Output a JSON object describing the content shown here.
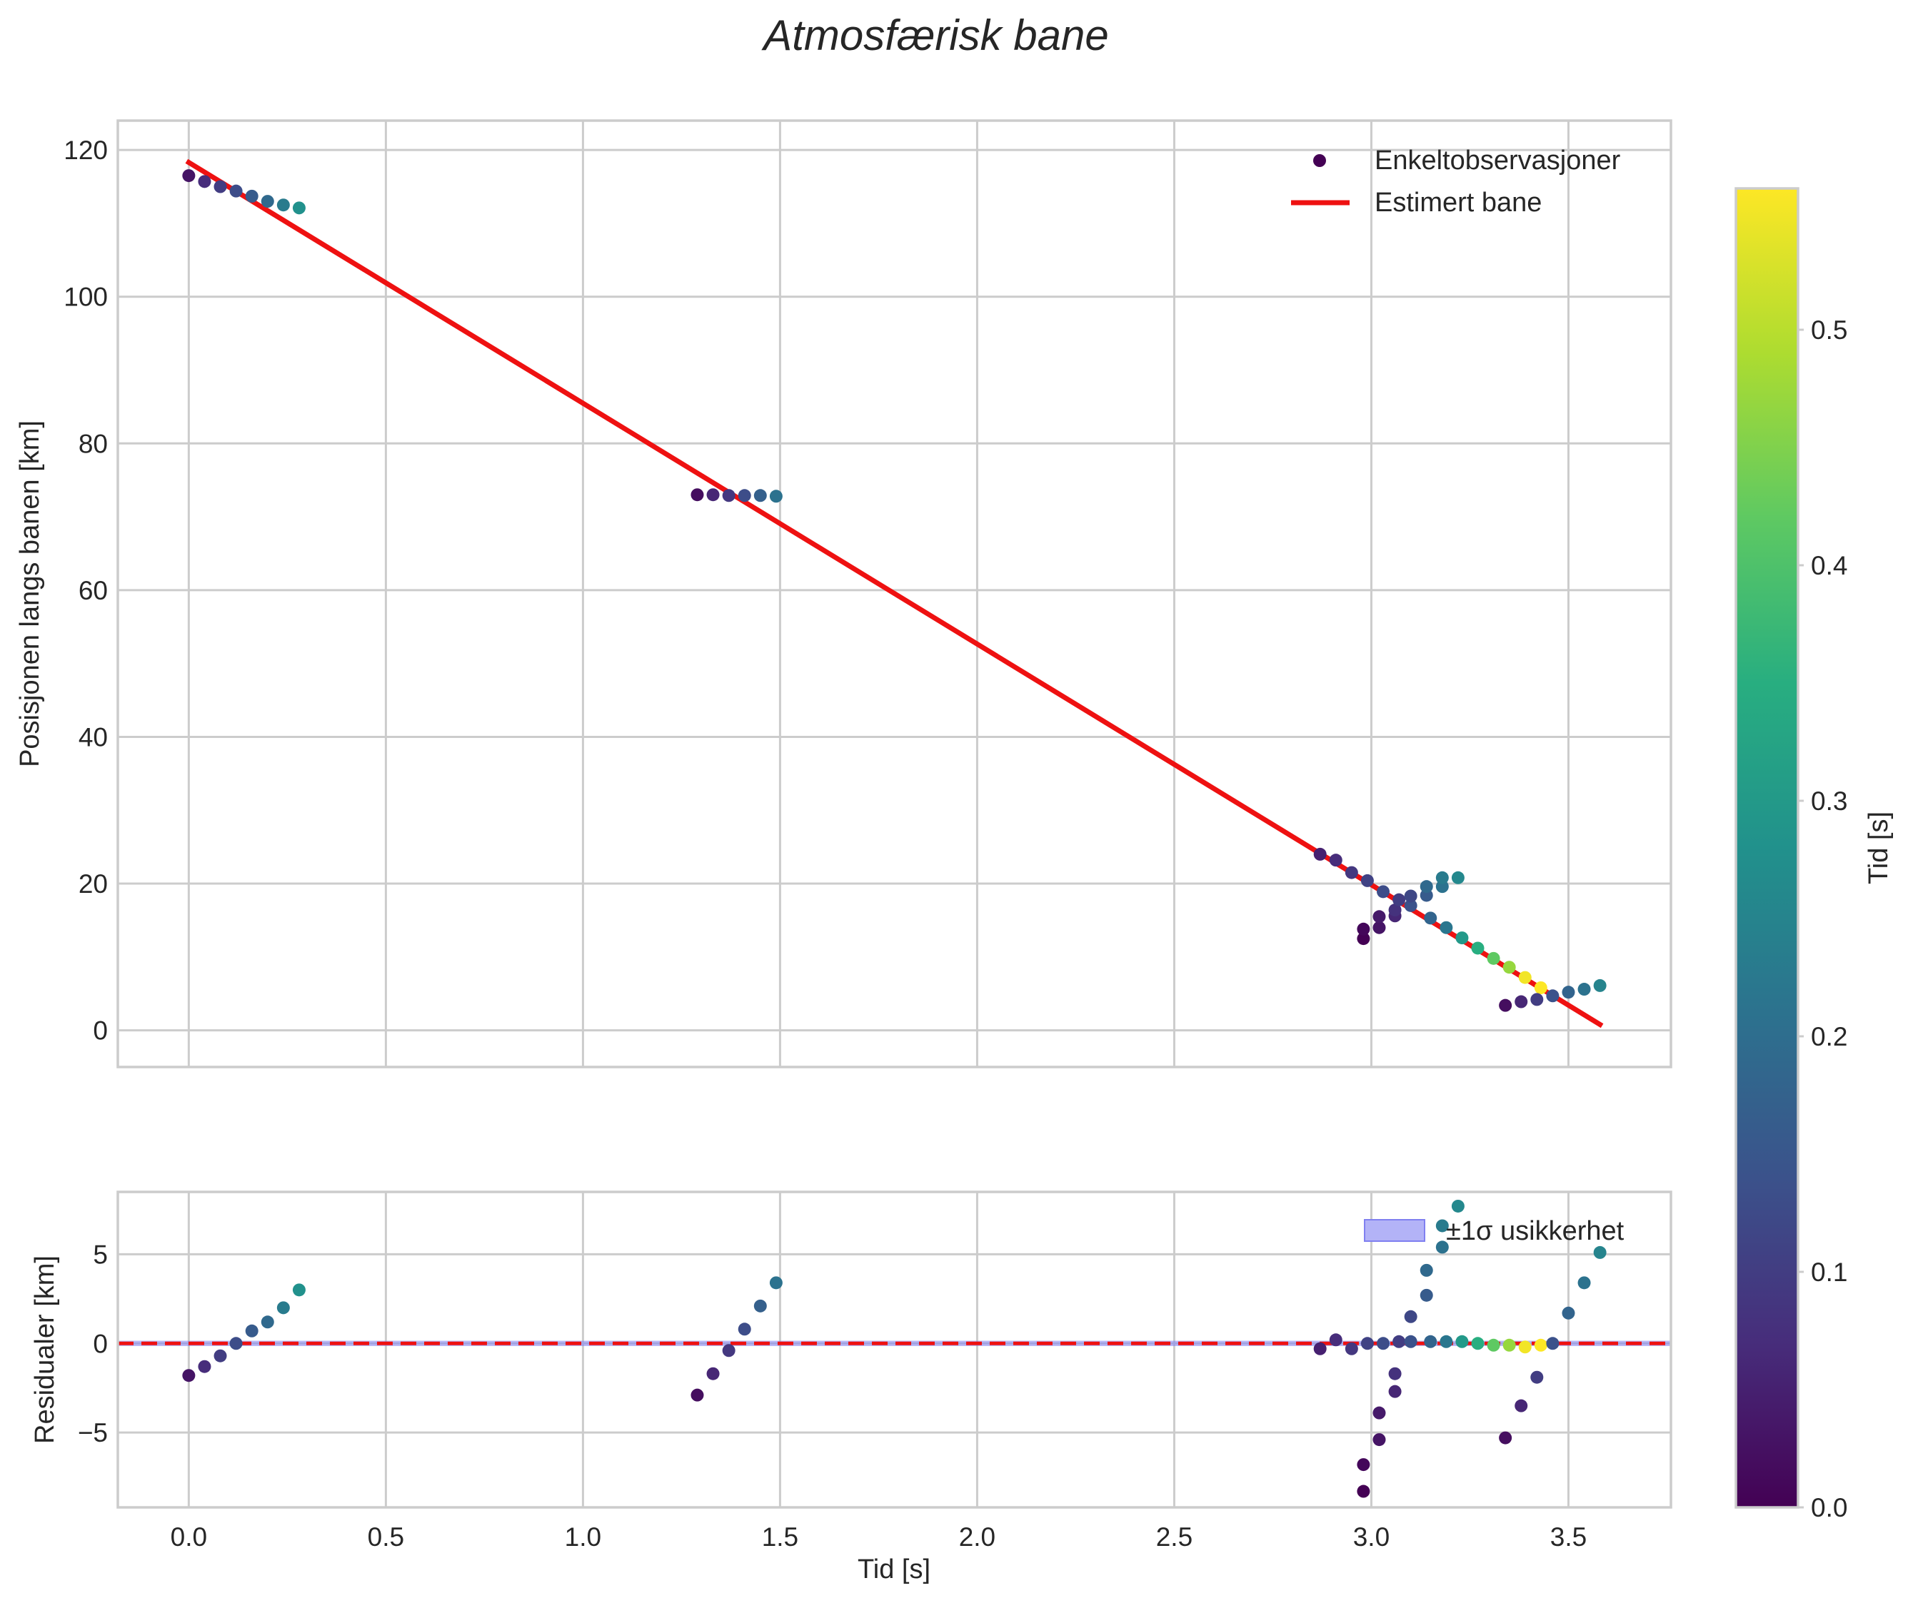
{
  "chart_data": {
    "title": "Atmosfærisk bane",
    "main": {
      "type": "scatter",
      "ylabel": "Posisjonen langs banen [km]",
      "xlim": [
        -0.18,
        3.76
      ],
      "ylim": [
        -5,
        124
      ],
      "yticks": [
        0,
        20,
        40,
        60,
        80,
        100,
        120
      ],
      "grid": true,
      "legend": {
        "position": "top-right",
        "scatter_label": "Enkeltobservasjoner",
        "line_label": "Estimert bane"
      },
      "fit_line": {
        "label": "Estimert bane",
        "color": "#ee1111",
        "x": [
          0.0,
          3.58
        ],
        "y": [
          118.3,
          0.8
        ]
      },
      "observations": [
        {
          "x": 0.0,
          "y": 116.5,
          "c": 0.03
        },
        {
          "x": 0.04,
          "y": 115.7,
          "c": 0.07
        },
        {
          "x": 0.08,
          "y": 115.0,
          "c": 0.1
        },
        {
          "x": 0.12,
          "y": 114.4,
          "c": 0.13
        },
        {
          "x": 0.16,
          "y": 113.7,
          "c": 0.16
        },
        {
          "x": 0.2,
          "y": 113.0,
          "c": 0.19
        },
        {
          "x": 0.24,
          "y": 112.5,
          "c": 0.23
        },
        {
          "x": 0.28,
          "y": 112.1,
          "c": 0.28
        },
        {
          "x": 1.29,
          "y": 73.0,
          "c": 0.02
        },
        {
          "x": 1.33,
          "y": 73.0,
          "c": 0.06
        },
        {
          "x": 1.37,
          "y": 72.9,
          "c": 0.09
        },
        {
          "x": 1.41,
          "y": 72.9,
          "c": 0.13
        },
        {
          "x": 1.45,
          "y": 72.9,
          "c": 0.17
        },
        {
          "x": 1.49,
          "y": 72.8,
          "c": 0.21
        },
        {
          "x": 2.87,
          "y": 24.0,
          "c": 0.05
        },
        {
          "x": 2.91,
          "y": 23.2,
          "c": 0.07
        },
        {
          "x": 2.95,
          "y": 21.5,
          "c": 0.09
        },
        {
          "x": 2.99,
          "y": 20.4,
          "c": 0.11
        },
        {
          "x": 2.98,
          "y": 12.5,
          "c": 0.0
        },
        {
          "x": 2.98,
          "y": 13.8,
          "c": 0.01
        },
        {
          "x": 3.02,
          "y": 14.0,
          "c": 0.03
        },
        {
          "x": 3.02,
          "y": 15.5,
          "c": 0.04
        },
        {
          "x": 3.03,
          "y": 18.9,
          "c": 0.13
        },
        {
          "x": 3.06,
          "y": 15.6,
          "c": 0.06
        },
        {
          "x": 3.06,
          "y": 16.4,
          "c": 0.08
        },
        {
          "x": 3.07,
          "y": 17.8,
          "c": 0.1
        },
        {
          "x": 3.1,
          "y": 17.0,
          "c": 0.14
        },
        {
          "x": 3.1,
          "y": 18.3,
          "c": 0.12
        },
        {
          "x": 3.14,
          "y": 18.4,
          "c": 0.16
        },
        {
          "x": 3.14,
          "y": 19.6,
          "c": 0.19
        },
        {
          "x": 3.15,
          "y": 15.3,
          "c": 0.18
        },
        {
          "x": 3.18,
          "y": 19.6,
          "c": 0.21
        },
        {
          "x": 3.18,
          "y": 20.8,
          "c": 0.23
        },
        {
          "x": 3.19,
          "y": 14.0,
          "c": 0.22
        },
        {
          "x": 3.22,
          "y": 20.8,
          "c": 0.26
        },
        {
          "x": 3.23,
          "y": 12.6,
          "c": 0.3
        },
        {
          "x": 3.27,
          "y": 11.2,
          "c": 0.35
        },
        {
          "x": 3.31,
          "y": 9.8,
          "c": 0.42
        },
        {
          "x": 3.35,
          "y": 8.6,
          "c": 0.47
        },
        {
          "x": 3.39,
          "y": 7.2,
          "c": 0.55
        },
        {
          "x": 3.43,
          "y": 5.8,
          "c": 0.56
        },
        {
          "x": 3.34,
          "y": 3.4,
          "c": 0.02
        },
        {
          "x": 3.38,
          "y": 3.9,
          "c": 0.06
        },
        {
          "x": 3.42,
          "y": 4.2,
          "c": 0.1
        },
        {
          "x": 3.46,
          "y": 4.7,
          "c": 0.14
        },
        {
          "x": 3.5,
          "y": 5.2,
          "c": 0.18
        },
        {
          "x": 3.54,
          "y": 5.6,
          "c": 0.21
        },
        {
          "x": 3.58,
          "y": 6.1,
          "c": 0.25
        }
      ]
    },
    "residuals": {
      "type": "scatter",
      "xlabel": "Tid [s]",
      "ylabel": "Residualer [km]",
      "xlim": [
        -0.18,
        3.76
      ],
      "ylim": [
        -9.2,
        8.5
      ],
      "yticks": [
        -5,
        0,
        5
      ],
      "ytick_labels": [
        "−5",
        "0",
        "5"
      ],
      "xticks": [
        0.0,
        0.5,
        1.0,
        1.5,
        2.0,
        2.5,
        3.0,
        3.5
      ],
      "xtick_labels": [
        "0.0",
        "0.5",
        "1.0",
        "1.5",
        "2.0",
        "2.5",
        "3.0",
        "3.5"
      ],
      "zero_line": {
        "color": "#ee1111",
        "style": "dashed",
        "y": 0
      },
      "band": {
        "label": "±1σ usikkerhet",
        "color": "#8080f0",
        "lower": -0.15,
        "upper": 0.15
      },
      "legend": {
        "position": "top-right",
        "band_label": "±1σ usikkerhet"
      },
      "points": [
        {
          "x": 0.0,
          "y": -1.8,
          "c": 0.03
        },
        {
          "x": 0.04,
          "y": -1.3,
          "c": 0.07
        },
        {
          "x": 0.08,
          "y": -0.7,
          "c": 0.1
        },
        {
          "x": 0.12,
          "y": 0.0,
          "c": 0.13
        },
        {
          "x": 0.16,
          "y": 0.7,
          "c": 0.16
        },
        {
          "x": 0.2,
          "y": 1.2,
          "c": 0.19
        },
        {
          "x": 0.24,
          "y": 2.0,
          "c": 0.23
        },
        {
          "x": 0.28,
          "y": 3.0,
          "c": 0.28
        },
        {
          "x": 1.29,
          "y": -2.9,
          "c": 0.02
        },
        {
          "x": 1.33,
          "y": -1.7,
          "c": 0.06
        },
        {
          "x": 1.37,
          "y": -0.4,
          "c": 0.09
        },
        {
          "x": 1.41,
          "y": 0.8,
          "c": 0.13
        },
        {
          "x": 1.45,
          "y": 2.1,
          "c": 0.17
        },
        {
          "x": 1.49,
          "y": 3.4,
          "c": 0.21
        },
        {
          "x": 2.87,
          "y": -0.3,
          "c": 0.05
        },
        {
          "x": 2.91,
          "y": 0.2,
          "c": 0.07
        },
        {
          "x": 2.95,
          "y": -0.3,
          "c": 0.09
        },
        {
          "x": 2.99,
          "y": 0.0,
          "c": 0.11
        },
        {
          "x": 2.98,
          "y": -8.3,
          "c": 0.0
        },
        {
          "x": 2.98,
          "y": -6.8,
          "c": 0.01
        },
        {
          "x": 3.02,
          "y": -5.4,
          "c": 0.03
        },
        {
          "x": 3.02,
          "y": -3.9,
          "c": 0.04
        },
        {
          "x": 3.03,
          "y": 0.0,
          "c": 0.13
        },
        {
          "x": 3.06,
          "y": -2.7,
          "c": 0.06
        },
        {
          "x": 3.06,
          "y": -1.7,
          "c": 0.08
        },
        {
          "x": 3.07,
          "y": 0.1,
          "c": 0.1
        },
        {
          "x": 3.1,
          "y": 0.1,
          "c": 0.14
        },
        {
          "x": 3.1,
          "y": 1.5,
          "c": 0.12
        },
        {
          "x": 3.14,
          "y": 2.7,
          "c": 0.16
        },
        {
          "x": 3.14,
          "y": 4.1,
          "c": 0.19
        },
        {
          "x": 3.15,
          "y": 0.1,
          "c": 0.18
        },
        {
          "x": 3.18,
          "y": 5.4,
          "c": 0.21
        },
        {
          "x": 3.18,
          "y": 6.6,
          "c": 0.23
        },
        {
          "x": 3.19,
          "y": 0.1,
          "c": 0.22
        },
        {
          "x": 3.22,
          "y": 7.7,
          "c": 0.26
        },
        {
          "x": 3.23,
          "y": 0.1,
          "c": 0.3
        },
        {
          "x": 3.27,
          "y": 0.0,
          "c": 0.35
        },
        {
          "x": 3.31,
          "y": -0.1,
          "c": 0.42
        },
        {
          "x": 3.35,
          "y": -0.1,
          "c": 0.47
        },
        {
          "x": 3.39,
          "y": -0.2,
          "c": 0.55
        },
        {
          "x": 3.43,
          "y": -0.1,
          "c": 0.56
        },
        {
          "x": 3.34,
          "y": -5.3,
          "c": 0.02
        },
        {
          "x": 3.38,
          "y": -3.5,
          "c": 0.06
        },
        {
          "x": 3.42,
          "y": -1.9,
          "c": 0.1
        },
        {
          "x": 3.46,
          "y": 0.0,
          "c": 0.14
        },
        {
          "x": 3.5,
          "y": 1.7,
          "c": 0.18
        },
        {
          "x": 3.54,
          "y": 3.4,
          "c": 0.21
        },
        {
          "x": 3.58,
          "y": 5.1,
          "c": 0.25
        }
      ]
    },
    "colorbar": {
      "label": "Tid [s]",
      "colormap": "viridis",
      "range": [
        0.0,
        0.56
      ],
      "ticks": [
        0.0,
        0.1,
        0.2,
        0.3,
        0.4,
        0.5
      ],
      "tick_labels": [
        "0.0",
        "0.1",
        "0.2",
        "0.3",
        "0.4",
        "0.5"
      ]
    }
  }
}
